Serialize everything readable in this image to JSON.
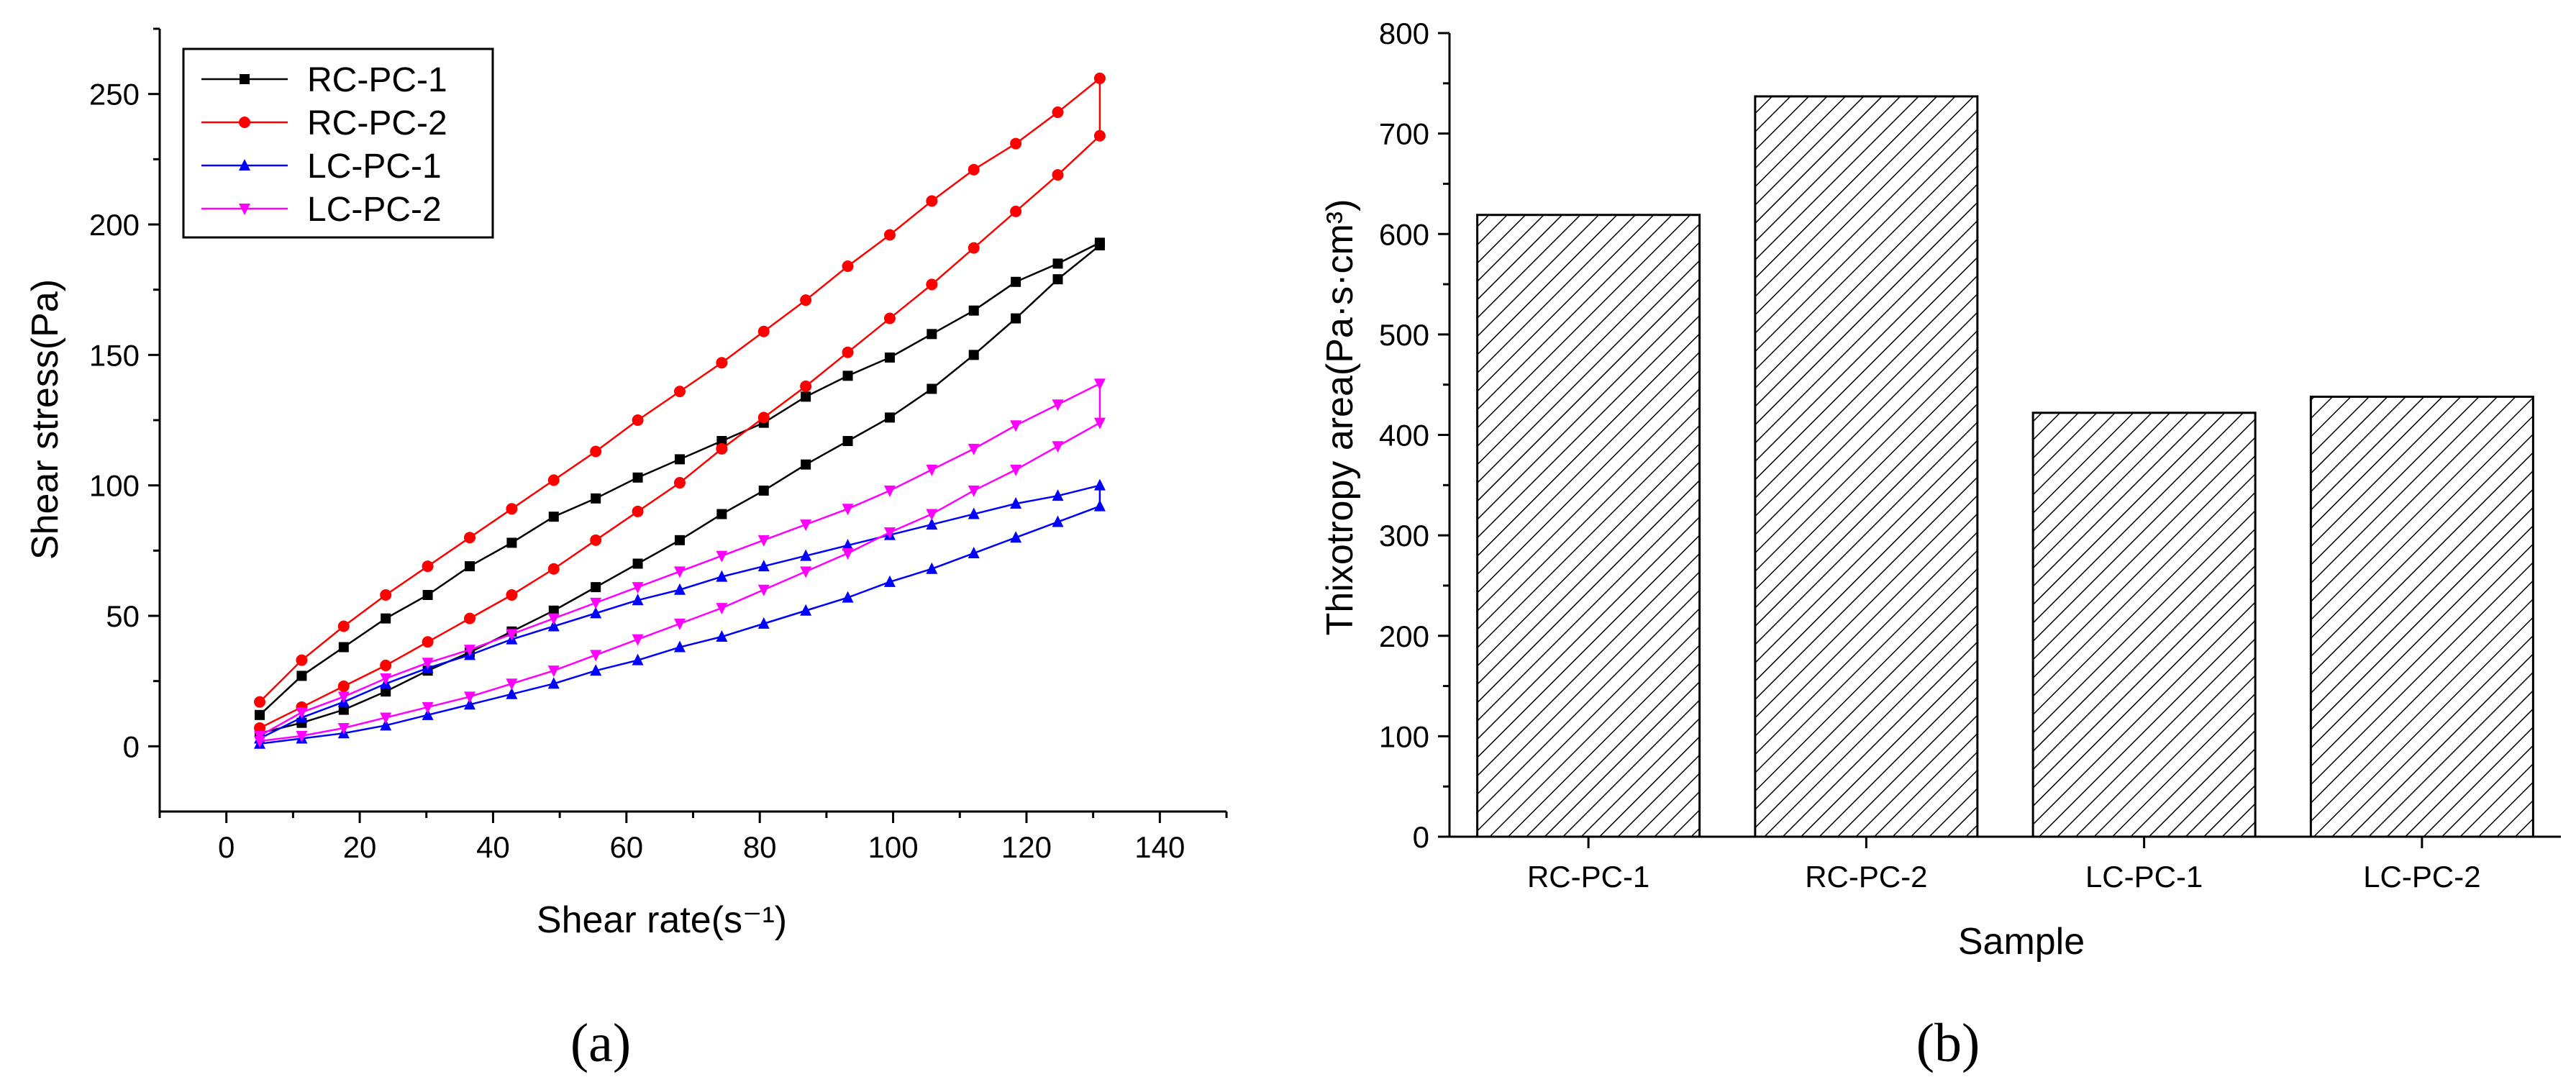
{
  "chart_data": [
    {
      "panel": "(a)",
      "type": "line",
      "xlabel": "Shear rate(s⁻¹)",
      "ylabel": "Shear stress(Pa)",
      "xlim": [
        -10,
        150
      ],
      "ylim": [
        -25,
        275
      ],
      "xticks": [
        0,
        20,
        40,
        60,
        80,
        100,
        120,
        140
      ],
      "yticks": [
        0,
        50,
        100,
        150,
        200,
        250
      ],
      "legend_position": "top-left",
      "x": [
        5,
        11.3,
        17.6,
        23.9,
        30.2,
        36.5,
        42.8,
        49.1,
        55.4,
        61.7,
        68,
        74.3,
        80.6,
        86.9,
        93.2,
        99.5,
        105.8,
        112.1,
        118.4,
        124.7,
        131
      ],
      "series": [
        {
          "name": "RC-PC-1",
          "color": "#000000",
          "marker": "square",
          "up": [
            5,
            9,
            14,
            21,
            29,
            36,
            44,
            52,
            61,
            70,
            79,
            89,
            98,
            108,
            117,
            126,
            137,
            150,
            164,
            179,
            192
          ],
          "down": [
            12,
            27,
            38,
            49,
            58,
            69,
            78,
            88,
            95,
            103,
            110,
            117,
            124,
            134,
            142,
            149,
            158,
            167,
            178,
            185,
            193
          ]
        },
        {
          "name": "RC-PC-2",
          "color": "#ff0000",
          "marker": "circle",
          "up": [
            7,
            15,
            23,
            31,
            40,
            49,
            58,
            68,
            79,
            90,
            101,
            114,
            126,
            138,
            151,
            164,
            177,
            191,
            205,
            219,
            234
          ],
          "down": [
            17,
            33,
            46,
            58,
            69,
            80,
            91,
            102,
            113,
            125,
            136,
            147,
            159,
            171,
            184,
            196,
            209,
            221,
            231,
            243,
            256
          ]
        },
        {
          "name": "LC-PC-1",
          "color": "#0000ff",
          "marker": "triangle-up",
          "up": [
            1,
            3,
            5,
            8,
            12,
            16,
            20,
            24,
            29,
            33,
            38,
            42,
            47,
            52,
            57,
            63,
            68,
            74,
            80,
            86,
            92
          ],
          "down": [
            3,
            11,
            17,
            24,
            30,
            35,
            41,
            46,
            51,
            56,
            60,
            65,
            69,
            73,
            77,
            81,
            85,
            89,
            93,
            96,
            100
          ]
        },
        {
          "name": "LC-PC-2",
          "color": "#ff00ff",
          "marker": "triangle-down",
          "up": [
            2,
            4,
            7,
            11,
            15,
            19,
            24,
            29,
            35,
            41,
            47,
            53,
            60,
            67,
            74,
            82,
            89,
            98,
            106,
            115,
            124
          ],
          "down": [
            4,
            13,
            19,
            26,
            32,
            37,
            43,
            49,
            55,
            61,
            67,
            73,
            79,
            85,
            91,
            98,
            106,
            114,
            123,
            131,
            139
          ]
        }
      ]
    },
    {
      "panel": "(b)",
      "type": "bar",
      "xlabel": "Sample",
      "ylabel": "Thixotropy area(Pa·s·cm³)",
      "categories": [
        "RC-PC-1",
        "RC-PC-2",
        "LC-PC-1",
        "LC-PC-2"
      ],
      "values": [
        619,
        737,
        422,
        438
      ],
      "ylim": [
        0,
        800
      ],
      "yticks": [
        0,
        100,
        200,
        300,
        400,
        500,
        600,
        700,
        800
      ],
      "fill": "diagonal-hatch"
    }
  ]
}
